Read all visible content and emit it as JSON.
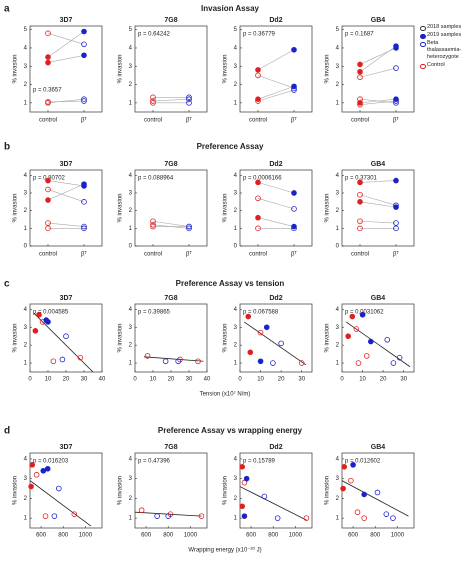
{
  "panels": [
    {
      "letter": "a",
      "title": "Invasion Assay"
    },
    {
      "letter": "b",
      "title": "Preference Assay"
    },
    {
      "letter": "c",
      "title": "Preference Assay vs tension",
      "xlabel": "Tension (x10⁷ N/m)"
    },
    {
      "letter": "d",
      "title": "Preference Assay vs wrapping energy",
      "xlabel": "Wrapping energy (x10⁻²⁰ J)"
    }
  ],
  "colors": {
    "control": "#e02020",
    "treated": "#1a23c9"
  },
  "legend": {
    "items": [
      {
        "label": "2018 samples",
        "color": "#333333",
        "filled": false
      },
      {
        "label": "2019 samples",
        "color": "#1a23c9",
        "filled": true
      },
      {
        "label": "Beta thalassaemia-heterozygote",
        "color": "#1a23c9",
        "filled": false
      },
      {
        "label": "Control",
        "color": "#e02020",
        "filled": false
      }
    ]
  },
  "chart_data": [
    {
      "type": "paired",
      "title": "3D7",
      "p": "p = 0.3657",
      "ylabel": "% invasion",
      "categories": [
        "control",
        "βᵀ"
      ],
      "ylim": [
        0.5,
        5.2
      ],
      "yticks": [
        1,
        2,
        3,
        4,
        5
      ],
      "open": [
        [
          4.8,
          4.2
        ],
        [
          1.0,
          1.2
        ],
        [
          1.05,
          1.1
        ]
      ],
      "filled": [
        [
          3.5,
          4.9
        ],
        [
          3.2,
          3.6
        ]
      ]
    },
    {
      "type": "paired",
      "title": "7G8",
      "p": "p = 0.64242",
      "ylabel": "% invasion",
      "categories": [
        "control",
        "βᵀ"
      ],
      "ylim": [
        0.5,
        5.2
      ],
      "yticks": [
        1,
        2,
        3,
        4,
        5
      ],
      "open": [
        [
          1.3,
          1.3
        ],
        [
          1.1,
          1.2
        ],
        [
          1.0,
          1.0
        ]
      ],
      "filled": []
    },
    {
      "type": "paired",
      "title": "Dd2",
      "p": "p = 0.36779",
      "ylabel": "% invasion",
      "categories": [
        "control",
        "βᵀ"
      ],
      "ylim": [
        0.5,
        5.2
      ],
      "yticks": [
        1,
        2,
        3,
        4,
        5
      ],
      "open": [
        [
          2.5,
          1.8
        ],
        [
          1.1,
          1.7
        ]
      ],
      "filled": [
        [
          2.8,
          3.9
        ],
        [
          1.2,
          1.9
        ]
      ]
    },
    {
      "type": "paired",
      "title": "GB4",
      "p": "p = 0.1687",
      "ylabel": "% invasion",
      "categories": [
        "control",
        "βᵀ"
      ],
      "ylim": [
        0.5,
        5.2
      ],
      "yticks": [
        1,
        2,
        3,
        4,
        5
      ],
      "open": [
        [
          2.4,
          2.9
        ],
        [
          1.2,
          1.0
        ],
        [
          0.9,
          1.1
        ]
      ],
      "filled": [
        [
          3.1,
          4.0
        ],
        [
          2.7,
          4.1
        ],
        [
          1.0,
          1.2
        ]
      ]
    },
    {
      "type": "paired",
      "title": "3D7",
      "p": "p = 0.80702",
      "ylabel": "% invasion",
      "categories": [
        "control",
        "βᵀ"
      ],
      "ylim": [
        0,
        4.3
      ],
      "yticks": [
        0,
        1,
        2,
        3,
        4
      ],
      "open": [
        [
          3.2,
          2.5
        ],
        [
          1.3,
          1.1
        ],
        [
          1.0,
          1.0
        ]
      ],
      "filled": [
        [
          3.7,
          3.4
        ],
        [
          2.6,
          3.5
        ]
      ]
    },
    {
      "type": "paired",
      "title": "7G8",
      "p": "p = 0.088964",
      "ylabel": "% invasion",
      "categories": [
        "control",
        "βᵀ"
      ],
      "ylim": [
        0,
        4.3
      ],
      "yticks": [
        0,
        1,
        2,
        3,
        4
      ],
      "open": [
        [
          1.4,
          1.1
        ],
        [
          1.2,
          1.0
        ],
        [
          1.1,
          1.1
        ]
      ],
      "filled": []
    },
    {
      "type": "paired",
      "title": "Dd2",
      "p": "p = 0.0006166",
      "ylabel": "% invasion",
      "categories": [
        "control",
        "βᵀ"
      ],
      "ylim": [
        0,
        4.3
      ],
      "yticks": [
        0,
        1,
        2,
        3,
        4
      ],
      "open": [
        [
          2.7,
          2.1
        ],
        [
          1.0,
          1.0
        ]
      ],
      "filled": [
        [
          3.6,
          3.0
        ],
        [
          1.6,
          1.1
        ]
      ]
    },
    {
      "type": "paired",
      "title": "GB4",
      "p": "p = 0.37301",
      "ylabel": "% invasion",
      "categories": [
        "control",
        "βᵀ"
      ],
      "ylim": [
        0,
        4.3
      ],
      "yticks": [
        0,
        1,
        2,
        3,
        4
      ],
      "open": [
        [
          2.9,
          2.3
        ],
        [
          1.4,
          1.3
        ],
        [
          1.0,
          1.0
        ]
      ],
      "filled": [
        [
          3.6,
          3.7
        ],
        [
          2.5,
          2.2
        ]
      ]
    },
    {
      "type": "scatter",
      "title": "3D7",
      "p": "p = 0.004585",
      "ylabel": "% invasion",
      "xlim": [
        0,
        40
      ],
      "xticks": [
        0,
        10,
        20,
        30,
        40
      ],
      "ylim": [
        0.5,
        4.3
      ],
      "yticks": [
        1,
        2,
        3,
        4
      ],
      "control_open": [
        [
          7,
          3.3
        ],
        [
          13,
          1.1
        ],
        [
          28,
          1.3
        ]
      ],
      "control_filled": [
        [
          5,
          3.7
        ],
        [
          3,
          2.8
        ]
      ],
      "beta_open": [
        [
          20,
          2.5
        ],
        [
          18,
          1.2
        ]
      ],
      "beta_filled": [
        [
          9,
          3.4
        ],
        [
          10,
          3.3
        ]
      ],
      "fit": [
        [
          2,
          3.8
        ],
        [
          35,
          0.5
        ]
      ]
    },
    {
      "type": "scatter",
      "title": "7G8",
      "p": "p = 0.39865",
      "ylabel": "% invasion",
      "xlim": [
        0,
        40
      ],
      "xticks": [
        0,
        10,
        20,
        30,
        40
      ],
      "ylim": [
        0.5,
        4.3
      ],
      "yticks": [
        1,
        2,
        3,
        4
      ],
      "control_open": [
        [
          7,
          1.4
        ],
        [
          25,
          1.2
        ],
        [
          35,
          1.1
        ]
      ],
      "control_filled": [],
      "beta_open": [
        [
          17,
          1.1
        ],
        [
          24,
          1.1
        ]
      ],
      "beta_filled": [],
      "fit": [
        [
          5,
          1.35
        ],
        [
          38,
          1.1
        ]
      ]
    },
    {
      "type": "scatter",
      "title": "Dd2",
      "p": "p = 0.067588",
      "ylabel": "% invasion",
      "xlim": [
        0,
        35
      ],
      "xticks": [
        0,
        10,
        20,
        30
      ],
      "ylim": [
        0.5,
        4.3
      ],
      "yticks": [
        1,
        2,
        3,
        4
      ],
      "control_open": [
        [
          10,
          2.7
        ],
        [
          30,
          1.0
        ]
      ],
      "control_filled": [
        [
          4,
          3.6
        ],
        [
          5,
          1.6
        ]
      ],
      "beta_open": [
        [
          20,
          2.1
        ],
        [
          16,
          1.0
        ]
      ],
      "beta_filled": [
        [
          13,
          3.0
        ],
        [
          10,
          1.1
        ]
      ],
      "fit": [
        [
          2,
          3.3
        ],
        [
          32,
          0.9
        ]
      ]
    },
    {
      "type": "scatter",
      "title": "GB4",
      "p": "p = 0.0031062",
      "ylabel": "% invasion",
      "xlim": [
        0,
        35
      ],
      "xticks": [
        0,
        10,
        20,
        30
      ],
      "ylim": [
        0.5,
        4.3
      ],
      "yticks": [
        1,
        2,
        3,
        4
      ],
      "control_open": [
        [
          7,
          2.9
        ],
        [
          12,
          1.4
        ],
        [
          8,
          1.0
        ]
      ],
      "control_filled": [
        [
          5,
          3.6
        ],
        [
          3,
          2.5
        ]
      ],
      "beta_open": [
        [
          22,
          2.3
        ],
        [
          28,
          1.3
        ],
        [
          25,
          1.0
        ]
      ],
      "beta_filled": [
        [
          10,
          3.7
        ],
        [
          14,
          2.2
        ]
      ],
      "fit": [
        [
          2,
          3.3
        ],
        [
          33,
          0.8
        ]
      ]
    },
    {
      "type": "scatter",
      "title": "3D7",
      "p": "p = 0.016203",
      "ylabel": "% invasion",
      "xlim": [
        500,
        1150
      ],
      "xticks": [
        600,
        800,
        1000
      ],
      "ylim": [
        0.5,
        4.3
      ],
      "yticks": [
        1,
        2,
        3,
        4
      ],
      "control_open": [
        [
          560,
          3.2
        ],
        [
          640,
          1.1
        ],
        [
          900,
          1.2
        ]
      ],
      "control_filled": [
        [
          520,
          3.7
        ],
        [
          510,
          2.6
        ]
      ],
      "beta_open": [
        [
          760,
          2.5
        ],
        [
          720,
          1.1
        ]
      ],
      "beta_filled": [
        [
          620,
          3.4
        ],
        [
          660,
          3.5
        ]
      ],
      "fit": [
        [
          500,
          2.9
        ],
        [
          1050,
          0.6
        ]
      ]
    },
    {
      "type": "scatter",
      "title": "7G8",
      "p": "p = 0.47396",
      "ylabel": "% invasion",
      "xlim": [
        500,
        1150
      ],
      "xticks": [
        600,
        800,
        1000
      ],
      "ylim": [
        0.5,
        4.3
      ],
      "yticks": [
        1,
        2,
        3,
        4
      ],
      "control_open": [
        [
          560,
          1.4
        ],
        [
          820,
          1.2
        ],
        [
          1100,
          1.1
        ]
      ],
      "control_filled": [],
      "beta_open": [
        [
          700,
          1.1
        ],
        [
          800,
          1.1
        ]
      ],
      "beta_filled": [],
      "fit": [
        [
          500,
          1.3
        ],
        [
          1100,
          1.1
        ]
      ]
    },
    {
      "type": "scatter",
      "title": "Dd2",
      "p": "p = 0.15789",
      "ylabel": "% invasion",
      "xlim": [
        500,
        1150
      ],
      "xticks": [
        600,
        800,
        1000
      ],
      "ylim": [
        0.5,
        4.3
      ],
      "yticks": [
        1,
        2,
        3,
        4
      ],
      "control_open": [
        [
          540,
          2.8
        ],
        [
          1100,
          1.0
        ]
      ],
      "control_filled": [
        [
          520,
          3.6
        ],
        [
          520,
          1.6
        ]
      ],
      "beta_open": [
        [
          720,
          2.1
        ],
        [
          840,
          1.0
        ]
      ],
      "beta_filled": [
        [
          560,
          3.0
        ],
        [
          540,
          1.1
        ]
      ],
      "fit": [
        [
          500,
          2.6
        ],
        [
          1100,
          0.9
        ]
      ]
    },
    {
      "type": "scatter",
      "title": "GB4",
      "p": "p = 0.012602",
      "ylabel": "% invasion",
      "xlim": [
        500,
        1150
      ],
      "xticks": [
        600,
        800,
        1000
      ],
      "ylim": [
        0.5,
        4.3
      ],
      "yticks": [
        1,
        2,
        3,
        4
      ],
      "control_open": [
        [
          580,
          2.9
        ],
        [
          640,
          1.3
        ],
        [
          700,
          1.0
        ]
      ],
      "control_filled": [
        [
          520,
          3.6
        ],
        [
          510,
          2.5
        ]
      ],
      "beta_open": [
        [
          820,
          2.3
        ],
        [
          900,
          1.2
        ],
        [
          960,
          1.0
        ]
      ],
      "beta_filled": [
        [
          600,
          3.7
        ],
        [
          700,
          2.2
        ]
      ],
      "fit": [
        [
          500,
          2.9
        ],
        [
          1100,
          1.1
        ]
      ]
    }
  ]
}
